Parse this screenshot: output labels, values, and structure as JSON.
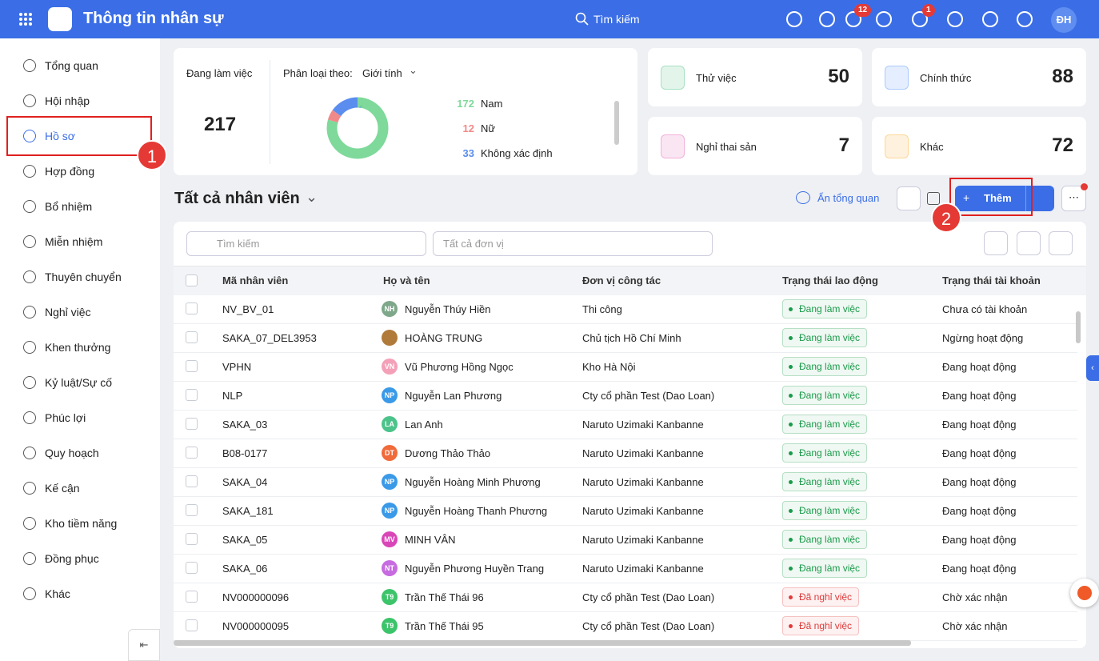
{
  "header": {
    "title": "Thông tin nhân sự",
    "search": "Tìm kiếm",
    "badges": [
      "12",
      "1"
    ],
    "avatar": "ĐH"
  },
  "sidebar": {
    "items": [
      "Tổng quan",
      "Hội nhập",
      "Hồ sơ",
      "Hợp đồng",
      "Bổ nhiệm",
      "Miễn nhiệm",
      "Thuyên chuyển",
      "Nghỉ việc",
      "Khen thưởng",
      "Kỷ luật/Sự cố",
      "Phúc lợi",
      "Quy hoạch",
      "Kế cận",
      "Kho tiềm năng",
      "Đồng phục",
      "Khác"
    ]
  },
  "annotations": [
    "1",
    "2"
  ],
  "summary": {
    "working_label": "Đang làm việc",
    "working_count": 217,
    "group_by_label": "Phân loại theo:",
    "group_by_value": "Giới tính",
    "breakdown": [
      {
        "count": 172,
        "label": "Nam",
        "color": "#7ed99a"
      },
      {
        "count": 12,
        "label": "Nữ",
        "color": "#f08a8a"
      },
      {
        "count": 33,
        "label": "Không xác định",
        "color": "#5b8def"
      }
    ]
  },
  "cards": [
    {
      "label": "Thử việc",
      "count": 50,
      "color": "#2db36b"
    },
    {
      "label": "Chính thức",
      "count": 88,
      "color": "#3b82f6"
    },
    {
      "label": "Nghỉ thai sản",
      "count": 7,
      "color": "#d946a8"
    },
    {
      "label": "Khác",
      "count": 72,
      "color": "#f59e0b"
    }
  ],
  "list": {
    "title": "Tất cả nhân viên",
    "hide_summary": "Ẩn tổng quan",
    "add_button": "Thêm",
    "search_placeholder": "Tìm kiếm",
    "unit_placeholder": "Tất cả đơn vị"
  },
  "table": {
    "columns": [
      "Mã nhân viên",
      "Họ và tên",
      "Đơn vị công tác",
      "Trạng thái lao động",
      "Trạng thái tài khoản"
    ],
    "rows": [
      {
        "code": "NV_BV_01",
        "initials": "NH",
        "color": "#7fa88a",
        "name": "Nguyễn Thúy Hiền",
        "unit": "Thi công",
        "status": "Đang làm việc",
        "status_color": "#1a9b4b",
        "account": "Chưa có tài khoản"
      },
      {
        "code": "SAKA_07_DEL3953",
        "color": "#b07a3a",
        "name": "HOÀNG TRUNG",
        "unit": "Chủ tịch Hồ Chí Minh",
        "status": "Đang làm việc",
        "status_color": "#1a9b4b",
        "account": "Ngừng hoạt động"
      },
      {
        "code": "VPHN",
        "initials": "VN",
        "color": "#f4a0b8",
        "name": "Vũ Phương Hồng Ngọc",
        "unit": "Kho Hà Nội",
        "status": "Đang làm việc",
        "status_color": "#1a9b4b",
        "account": "Đang hoạt động"
      },
      {
        "code": "NLP",
        "initials": "NP",
        "color": "#3b9ae8",
        "name": "Nguyễn Lan Phương",
        "unit": "Cty cổ phần Test (Dao Loan)",
        "status": "Đang làm việc",
        "status_color": "#1a9b4b",
        "account": "Đang hoạt động"
      },
      {
        "code": "SAKA_03",
        "initials": "LA",
        "color": "#4cc38a",
        "name": "Lan Anh",
        "unit": "Naruto Uzimaki Kanbanne",
        "status": "Đang làm việc",
        "status_color": "#1a9b4b",
        "account": "Đang hoạt động"
      },
      {
        "code": "B08-0177",
        "initials": "DT",
        "color": "#f06a3a",
        "name": "Dương Thảo Thảo",
        "unit": "Naruto Uzimaki Kanbanne",
        "status": "Đang làm việc",
        "status_color": "#1a9b4b",
        "account": "Đang hoạt động"
      },
      {
        "code": "SAKA_04",
        "initials": "NP",
        "color": "#3b9ae8",
        "name": "Nguyễn Hoàng Minh Phương",
        "unit": "Naruto Uzimaki Kanbanne",
        "status": "Đang làm việc",
        "status_color": "#1a9b4b",
        "account": "Đang hoạt động"
      },
      {
        "code": "SAKA_181",
        "initials": "NP",
        "color": "#3b9ae8",
        "name": "Nguyễn Hoàng Thanh Phương",
        "unit": "Naruto Uzimaki Kanbanne",
        "status": "Đang làm việc",
        "status_color": "#1a9b4b",
        "account": "Đang hoạt động"
      },
      {
        "code": "SAKA_05",
        "initials": "MV",
        "color": "#d946b8",
        "name": "MINH VÂN",
        "unit": "Naruto Uzimaki Kanbanne",
        "status": "Đang làm việc",
        "status_color": "#1a9b4b",
        "account": "Đang hoạt động"
      },
      {
        "code": "SAKA_06",
        "initials": "NT",
        "color": "#c76be0",
        "name": "Nguyễn Phương Huyền Trang",
        "unit": "Naruto Uzimaki Kanbanne",
        "status": "Đang làm việc",
        "status_color": "#1a9b4b",
        "account": "Đang hoạt động"
      },
      {
        "code": "NV000000096",
        "initials": "T9",
        "color": "#3cc46a",
        "name": "Trần Thế Thái 96",
        "unit": "Cty cổ phần Test (Dao Loan)",
        "status": "Đã nghỉ việc",
        "status_color": "#e03b3b",
        "account": "Chờ xác nhận"
      },
      {
        "code": "NV000000095",
        "initials": "T9",
        "color": "#3cc46a",
        "name": "Trần Thế Thái 95",
        "unit": "Cty cổ phần Test (Dao Loan)",
        "status": "Đã nghỉ việc",
        "status_color": "#e03b3b",
        "account": "Chờ xác nhận"
      }
    ]
  }
}
